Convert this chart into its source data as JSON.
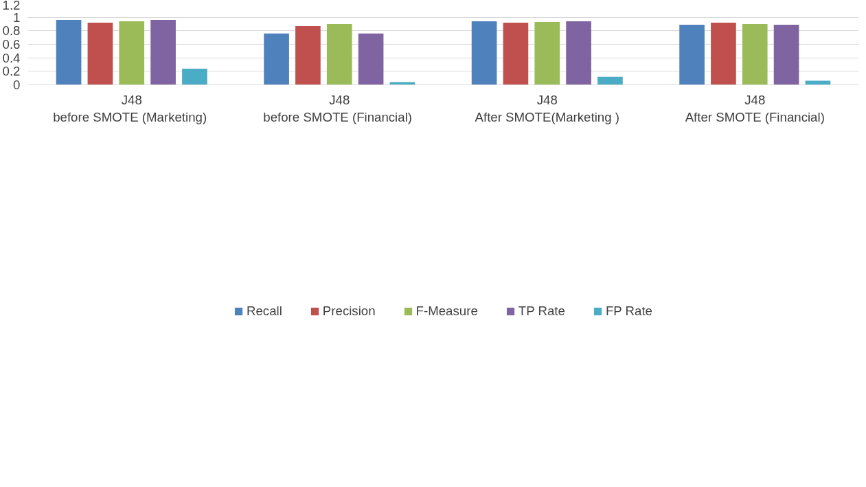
{
  "chart_data": {
    "type": "bar",
    "categories": [
      "J48\nbefore  SMOTE (Marketing)",
      "J48\nbefore  SMOTE (Financial)",
      "J48\nAfter SMOTE(Marketing )",
      "J48\nAfter SMOTE (Financial)"
    ],
    "series": [
      {
        "name": "Recall",
        "color": "#4f81bd",
        "values": [
          0.96,
          0.76,
          0.94,
          0.89
        ]
      },
      {
        "name": "Precision",
        "color": "#c0504d",
        "values": [
          0.92,
          0.87,
          0.92,
          0.92
        ]
      },
      {
        "name": "F-Measure",
        "color": "#9bbb59",
        "values": [
          0.94,
          0.9,
          0.93,
          0.9
        ]
      },
      {
        "name": "TP Rate",
        "color": "#8064a2",
        "values": [
          0.96,
          0.76,
          0.94,
          0.89
        ]
      },
      {
        "name": "FP Rate",
        "color": "#4bacc6",
        "values": [
          0.24,
          0.04,
          0.12,
          0.06
        ]
      }
    ],
    "ylim": [
      0,
      1.2
    ],
    "yticks": [
      0,
      0.2,
      0.4,
      0.6,
      0.8,
      1,
      1.2
    ],
    "grid": "y",
    "legend": "bottom"
  }
}
